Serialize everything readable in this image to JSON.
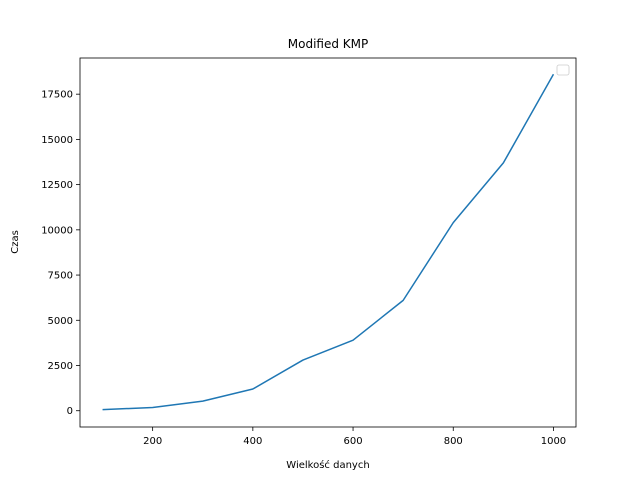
{
  "chart_data": {
    "type": "line",
    "title": "Modified KMP",
    "xlabel": "Wielkość danych",
    "ylabel": "Czas",
    "xlim": [
      55,
      1045
    ],
    "ylim": [
      -900,
      19500
    ],
    "x_ticks": [
      200,
      400,
      600,
      800,
      1000
    ],
    "x_tick_labels": [
      "200",
      "400",
      "600",
      "800",
      "1000"
    ],
    "y_ticks": [
      0,
      2500,
      5000,
      7500,
      10000,
      12500,
      15000,
      17500
    ],
    "y_tick_labels": [
      "0",
      "2500",
      "5000",
      "7500",
      "10000",
      "12500",
      "15000",
      "17500"
    ],
    "grid": false,
    "legend": {
      "placement": "top-right",
      "entries": []
    },
    "series": [
      {
        "color": "#1f77b4",
        "x": [
          100,
          200,
          300,
          400,
          500,
          600,
          700,
          800,
          900,
          1000
        ],
        "y": [
          60,
          180,
          530,
          1200,
          2800,
          3900,
          6100,
          10400,
          13700,
          18600
        ]
      }
    ]
  }
}
